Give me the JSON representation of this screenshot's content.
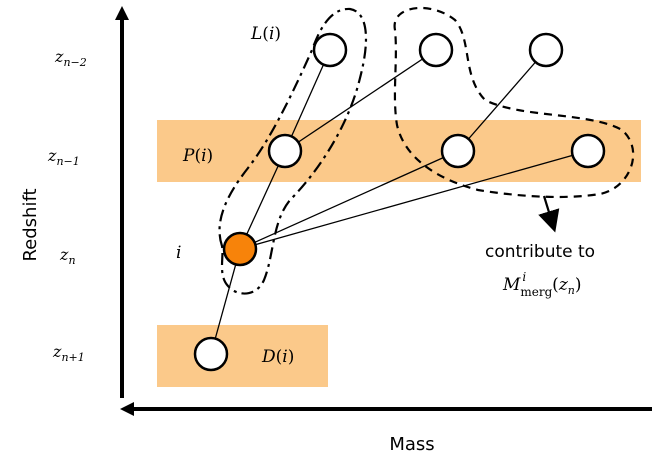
{
  "axes": {
    "xlabel": "Mass",
    "ylabel": "Redshift"
  },
  "redshift_levels": {
    "z_nm2": {
      "base": "z",
      "sub": "n−2"
    },
    "z_nm1": {
      "base": "z",
      "sub": "n−1"
    },
    "z_n": {
      "base": "z",
      "sub": "n"
    },
    "z_np1": {
      "base": "z",
      "sub": "n+1"
    }
  },
  "labels": {
    "L": {
      "fn": "L",
      "arg": "i"
    },
    "P": {
      "fn": "P",
      "arg": "i"
    },
    "D": {
      "fn": "D",
      "arg": "i"
    },
    "i": "i"
  },
  "contribute": {
    "line1": "contribute to",
    "M": "M",
    "sub": "merg",
    "sup": "i",
    "z": "z",
    "zsub": "n"
  },
  "colors": {
    "band": "#fbc98a",
    "node_highlight": "#f7830a",
    "node_default": "#ffffff",
    "stroke": "#000000"
  }
}
